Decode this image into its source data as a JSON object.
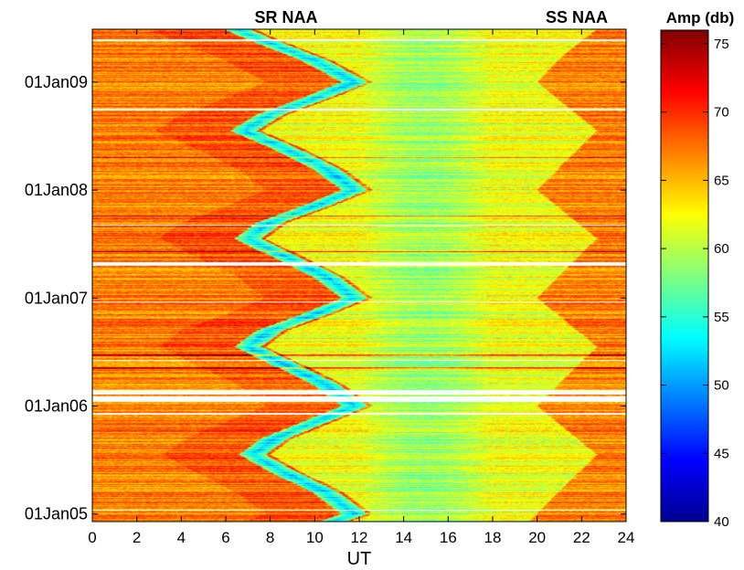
{
  "chart_data": {
    "type": "heatmap",
    "annotations": [
      "SR NAA",
      "SS NAA"
    ],
    "xlabel": "UT",
    "xlim": [
      0,
      24
    ],
    "x_ticks": [
      0,
      2,
      4,
      6,
      8,
      10,
      12,
      14,
      16,
      18,
      20,
      22,
      24
    ],
    "y_tick_labels": [
      "01Jan05",
      "01Jan06",
      "01Jan07",
      "01Jan08",
      "01Jan09"
    ],
    "y_ticks_years": [
      2005.0,
      2006.0,
      2007.0,
      2008.0,
      2009.0
    ],
    "ylim_years": [
      2004.93,
      2009.49
    ],
    "colorbar": {
      "title": "Amp (db)",
      "range": [
        40,
        76
      ],
      "ticks": [
        40,
        45,
        50,
        55,
        60,
        65,
        70,
        75
      ],
      "colormap": "jet"
    },
    "sunrise_terminator_ut": [
      {
        "date": 2004.93,
        "ut": 10.8
      },
      {
        "date": 2005.0,
        "ut": 11.8
      },
      {
        "date": 2005.2,
        "ut": 10.5
      },
      {
        "date": 2005.4,
        "ut": 8.5
      },
      {
        "date": 2005.55,
        "ut": 7.2
      },
      {
        "date": 2005.7,
        "ut": 8.2
      },
      {
        "date": 2005.85,
        "ut": 10.0
      },
      {
        "date": 2006.0,
        "ut": 11.8
      },
      {
        "date": 2006.2,
        "ut": 10.5
      },
      {
        "date": 2006.4,
        "ut": 8.5
      },
      {
        "date": 2006.55,
        "ut": 7.0
      },
      {
        "date": 2006.7,
        "ut": 8.0
      },
      {
        "date": 2006.85,
        "ut": 10.0
      },
      {
        "date": 2007.0,
        "ut": 11.8
      },
      {
        "date": 2007.2,
        "ut": 10.5
      },
      {
        "date": 2007.4,
        "ut": 8.5
      },
      {
        "date": 2007.55,
        "ut": 7.0
      },
      {
        "date": 2007.7,
        "ut": 8.0
      },
      {
        "date": 2007.85,
        "ut": 10.0
      },
      {
        "date": 2008.0,
        "ut": 11.8
      },
      {
        "date": 2008.2,
        "ut": 10.5
      },
      {
        "date": 2008.4,
        "ut": 8.5
      },
      {
        "date": 2008.55,
        "ut": 6.8
      },
      {
        "date": 2008.7,
        "ut": 8.0
      },
      {
        "date": 2008.85,
        "ut": 10.0
      },
      {
        "date": 2009.0,
        "ut": 11.8
      },
      {
        "date": 2009.2,
        "ut": 10.0
      },
      {
        "date": 2009.4,
        "ut": 7.5
      },
      {
        "date": 2009.49,
        "ut": 6.5
      }
    ],
    "sunset_terminator_ut": [
      {
        "date": 2004.93,
        "ut": 20.5
      },
      {
        "date": 2005.0,
        "ut": 20.8
      },
      {
        "date": 2005.25,
        "ut": 22.0
      },
      {
        "date": 2005.55,
        "ut": 23.5
      },
      {
        "date": 2005.8,
        "ut": 22.0
      },
      {
        "date": 2006.0,
        "ut": 20.8
      },
      {
        "date": 2006.25,
        "ut": 22.0
      },
      {
        "date": 2006.55,
        "ut": 23.5
      },
      {
        "date": 2006.8,
        "ut": 22.0
      },
      {
        "date": 2007.0,
        "ut": 20.8
      },
      {
        "date": 2007.25,
        "ut": 22.0
      },
      {
        "date": 2007.55,
        "ut": 23.5
      },
      {
        "date": 2007.8,
        "ut": 22.0
      },
      {
        "date": 2008.0,
        "ut": 20.8
      },
      {
        "date": 2008.25,
        "ut": 22.0
      },
      {
        "date": 2008.55,
        "ut": 23.5
      },
      {
        "date": 2008.8,
        "ut": 22.0
      },
      {
        "date": 2009.0,
        "ut": 20.8
      },
      {
        "date": 2009.25,
        "ut": 22.0
      },
      {
        "date": 2009.49,
        "ut": 23.5
      }
    ],
    "data_gaps_years": [
      [
        2005.03,
        2005.04
      ],
      [
        2005.92,
        2005.94
      ],
      [
        2006.04,
        2006.09
      ],
      [
        2006.11,
        2006.15
      ],
      [
        2006.42,
        2006.43
      ],
      [
        2006.96,
        2006.97
      ],
      [
        2007.3,
        2007.33
      ],
      [
        2007.67,
        2007.68
      ],
      [
        2008.74,
        2008.75
      ],
      [
        2009.38,
        2009.4
      ]
    ],
    "strong_signal_bands_years": [
      2006.35,
      2006.47,
      2007.43,
      2007.76,
      2008.3
    ],
    "day_level_db": {
      "daytime": 62,
      "night": 67,
      "terminator_minimum": 52
    }
  }
}
